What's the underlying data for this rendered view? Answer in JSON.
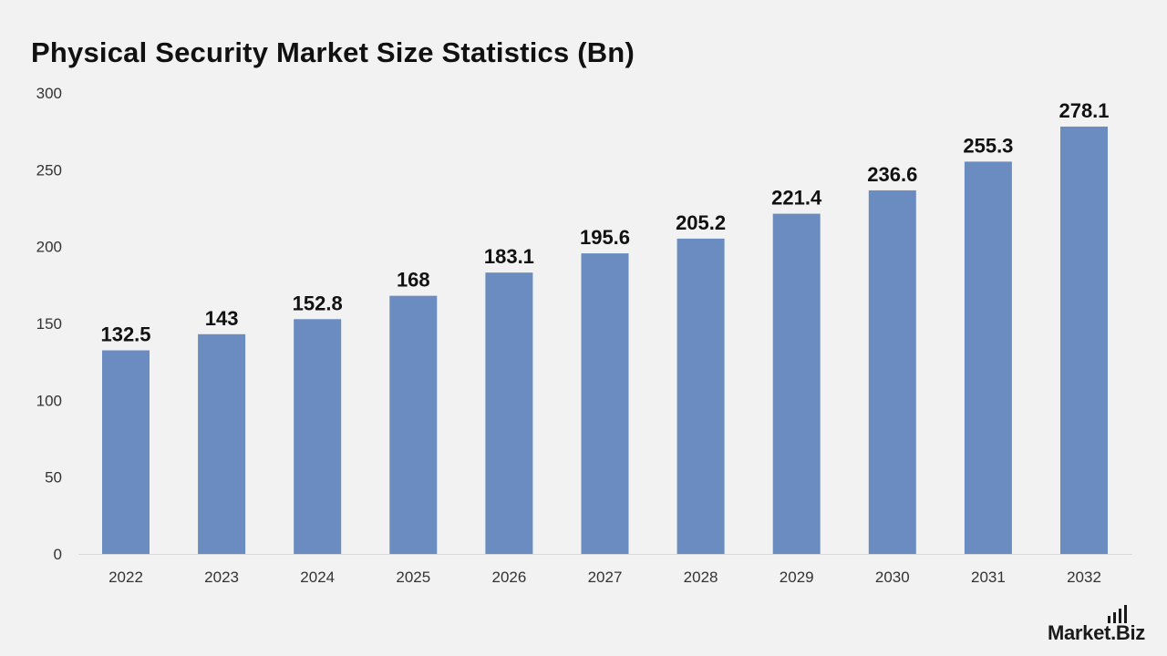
{
  "page": {
    "title": "Physical Security Market Size Statistics (Bn)",
    "logo_text": "Market.Biz"
  },
  "colors": {
    "background": "#f2f2f2",
    "bar": "#6b8cc0",
    "axis": "#d9d9d9",
    "text": "#111111"
  },
  "chart_data": {
    "type": "bar",
    "title": "Physical Security Market Size Statistics (Bn)",
    "xlabel": "",
    "ylabel": "",
    "categories": [
      "2022",
      "2023",
      "2024",
      "2025",
      "2026",
      "2027",
      "2028",
      "2029",
      "2030",
      "2031",
      "2032"
    ],
    "values": [
      132.5,
      143,
      152.8,
      168,
      183.1,
      195.6,
      205.2,
      221.4,
      236.6,
      255.3,
      278.1
    ],
    "value_labels": [
      "132.5",
      "143",
      "152.8",
      "168",
      "183.1",
      "195.6",
      "205.2",
      "221.4",
      "236.6",
      "255.3",
      "278.1"
    ],
    "ylim": [
      0,
      300
    ],
    "yticks": [
      "0",
      "50",
      "100",
      "150",
      "200",
      "250",
      "300"
    ],
    "grid": false,
    "legend": "none"
  }
}
